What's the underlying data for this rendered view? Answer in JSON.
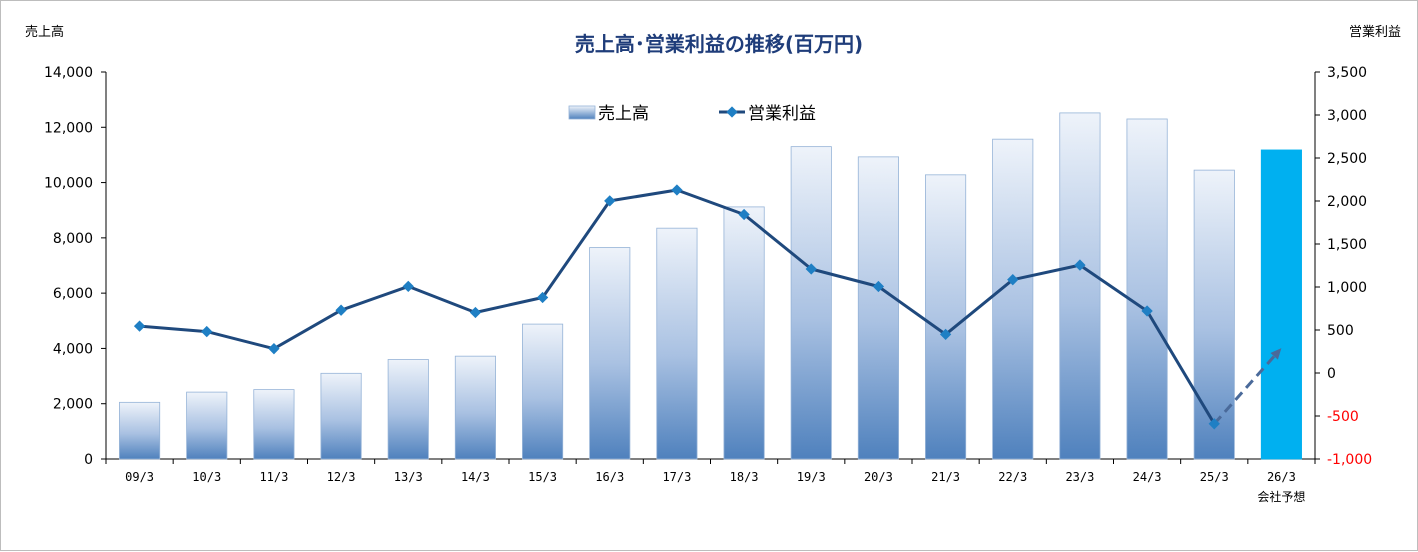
{
  "chart_data": {
    "type": "bar",
    "title": "売上高･営業利益の推移(百万円)",
    "ylabel": "売上高",
    "y2label": "営業利益",
    "ylim": [
      0,
      14000
    ],
    "y2lim": [
      -1000,
      3500
    ],
    "yticks": [
      "0",
      "2,000",
      "4,000",
      "6,000",
      "8,000",
      "10,000",
      "12,000",
      "14,000"
    ],
    "y2ticks": [
      "-1,000",
      "-500",
      "0",
      "500",
      "1,000",
      "1,500",
      "2,000",
      "2,500",
      "3,000",
      "3,500"
    ],
    "categories": [
      "09/3",
      "10/3",
      "11/3",
      "12/3",
      "13/3",
      "14/3",
      "15/3",
      "16/3",
      "17/3",
      "18/3",
      "19/3",
      "20/3",
      "21/3",
      "22/3",
      "23/3",
      "24/3",
      "25/3",
      "26/3"
    ],
    "forecast_label": "会社予想",
    "series": [
      {
        "name": "売上高",
        "type": "bar",
        "axis": "left",
        "values": [
          2050,
          2420,
          2510,
          3100,
          3600,
          3720,
          4880,
          7650,
          8350,
          9120,
          11300,
          10930,
          10280,
          11570,
          12520,
          12300,
          10450,
          11180
        ],
        "color": "#4f81bd",
        "forecast_color": "#00b0f0"
      },
      {
        "name": "営業利益",
        "type": "line",
        "axis": "right",
        "values": [
          545,
          481,
          283,
          730,
          1007,
          704,
          878,
          2001,
          2128,
          1843,
          1209,
          1006,
          449,
          1085,
          1255,
          721,
          -591,
          290
        ],
        "color": "#1f497d",
        "marker_color": "#1f7fc4"
      }
    ],
    "grid": false,
    "legend": "top-center"
  }
}
